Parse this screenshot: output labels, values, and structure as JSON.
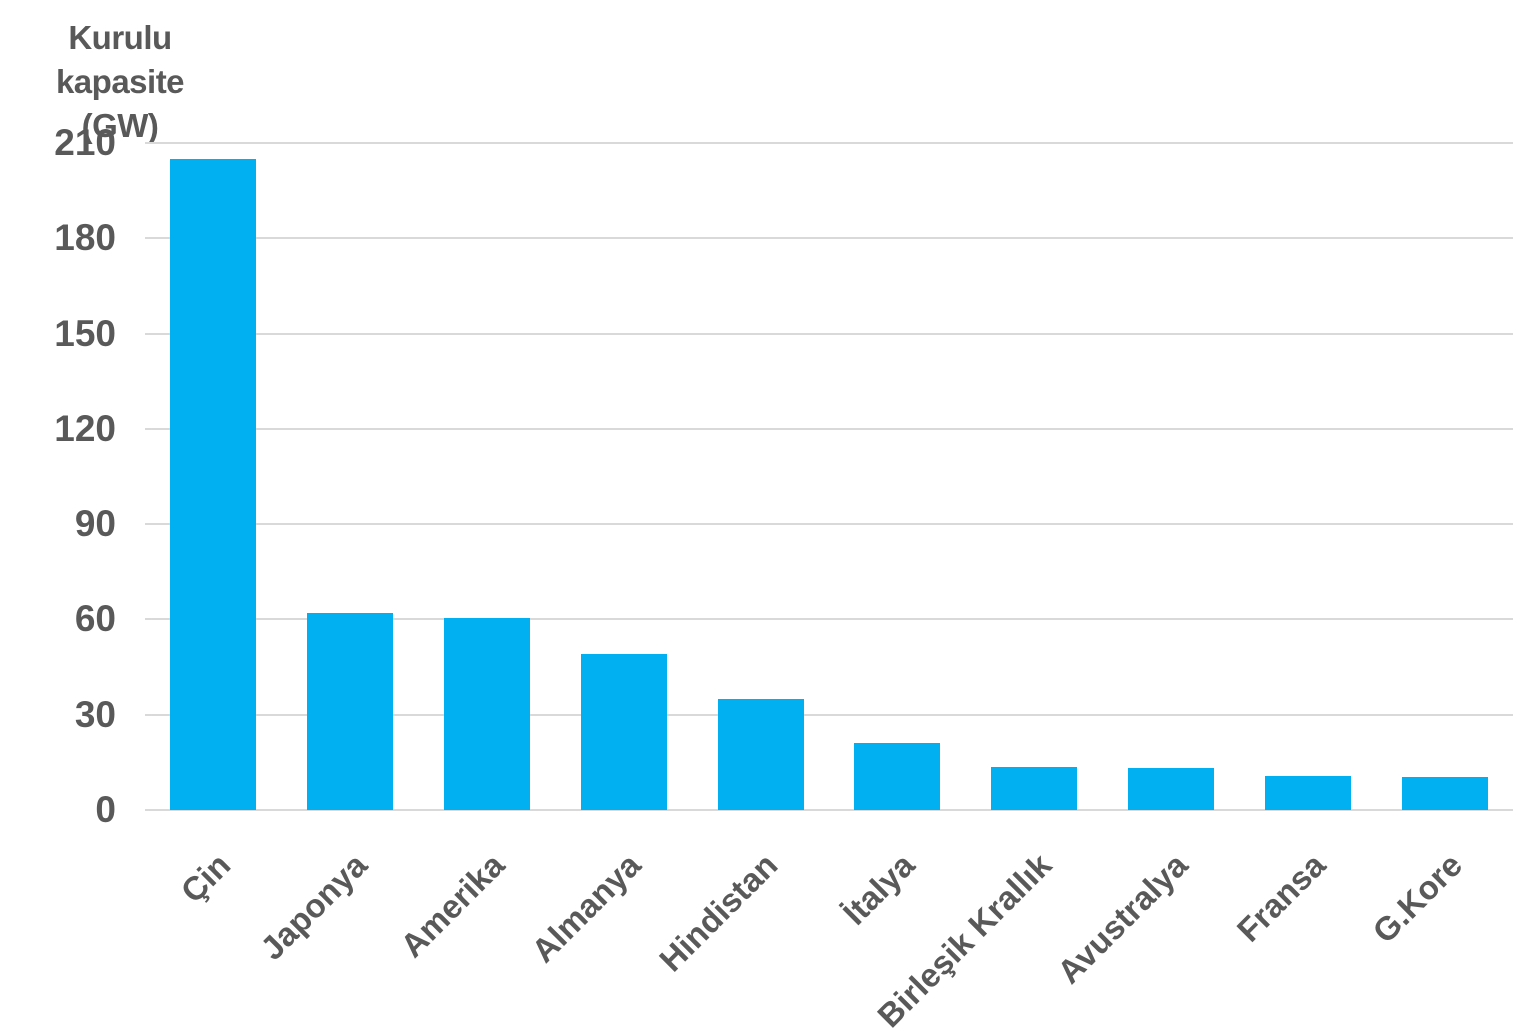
{
  "title": {
    "line1": "Kurulu kapasite",
    "line2": "(GW)"
  },
  "chart_data": {
    "type": "bar",
    "title": "Kurulu kapasite (GW)",
    "ylabel": "Kurulu kapasite (GW)",
    "xlabel": "",
    "categories": [
      "Çin",
      "Japonya",
      "Amerika",
      "Almanya",
      "Hindistan",
      "İtalya",
      "Birleşik Krallık",
      "Avustralya",
      "Fransa",
      "G.Kore"
    ],
    "values": [
      205,
      62,
      60.5,
      49,
      35,
      21,
      13.5,
      13.3,
      10.7,
      10.4
    ],
    "ylim": [
      0,
      210
    ],
    "yticks": [
      0,
      30,
      60,
      90,
      120,
      150,
      180,
      210
    ],
    "grid": true,
    "legend": false,
    "bar_color": "#00b0f0",
    "text_color": "#595959",
    "gridline_color": "#d9d9d9"
  }
}
